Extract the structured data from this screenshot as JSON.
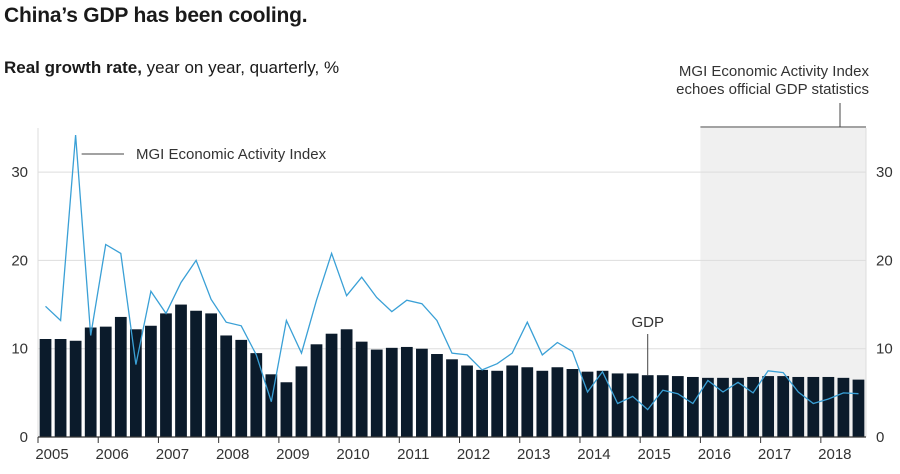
{
  "header": {
    "title": "China’s GDP has been cooling.",
    "subtitle_bold": "Real growth rate,",
    "subtitle_rest": " year on year, quarterly, %"
  },
  "annotations": {
    "shaded_note_line1": "MGI Economic Activity Index",
    "shaded_note_line2": "echoes official GDP statistics",
    "index_label": "MGI Economic Activity Index",
    "gdp_label": "GDP"
  },
  "colors": {
    "bar": "#0b1b2b",
    "line": "#3aa0d6",
    "shade": "#f0f0f0",
    "grid": "#dddddd",
    "axis": "#333333",
    "text": "#333333"
  },
  "chart_data": {
    "type": "bar",
    "title": "China’s GDP has been cooling.",
    "ylabel": "Real growth rate, year on year, quarterly, %",
    "ylim": [
      0,
      35
    ],
    "y_ticks": [
      0,
      10,
      20,
      30
    ],
    "x_tick_labels": [
      "2005",
      "2006",
      "2007",
      "2008",
      "2009",
      "2010",
      "2011",
      "2012",
      "2013",
      "2014",
      "2015",
      "2016",
      "2017",
      "2018"
    ],
    "shaded_from_year": "2016",
    "grid": true,
    "x": [
      "2005 Q1",
      "2005 Q2",
      "2005 Q3",
      "2005 Q4",
      "2006 Q1",
      "2006 Q2",
      "2006 Q3",
      "2006 Q4",
      "2007 Q1",
      "2007 Q2",
      "2007 Q3",
      "2007 Q4",
      "2008 Q1",
      "2008 Q2",
      "2008 Q3",
      "2008 Q4",
      "2009 Q1",
      "2009 Q2",
      "2009 Q3",
      "2009 Q4",
      "2010 Q1",
      "2010 Q2",
      "2010 Q3",
      "2010 Q4",
      "2011 Q1",
      "2011 Q2",
      "2011 Q3",
      "2011 Q4",
      "2012 Q1",
      "2012 Q2",
      "2012 Q3",
      "2012 Q4",
      "2013 Q1",
      "2013 Q2",
      "2013 Q3",
      "2013 Q4",
      "2014 Q1",
      "2014 Q2",
      "2014 Q3",
      "2014 Q4",
      "2015 Q1",
      "2015 Q2",
      "2015 Q3",
      "2015 Q4",
      "2016 Q1",
      "2016 Q2",
      "2016 Q3",
      "2016 Q4",
      "2017 Q1",
      "2017 Q2",
      "2017 Q3",
      "2017 Q4",
      "2018 Q1",
      "2018 Q2",
      "2018 Q3"
    ],
    "series": [
      {
        "name": "GDP",
        "kind": "bar",
        "values": [
          11.1,
          11.1,
          10.9,
          12.4,
          12.5,
          13.6,
          12.2,
          12.6,
          14.0,
          15.0,
          14.3,
          14.0,
          11.5,
          11.0,
          9.5,
          7.1,
          6.2,
          8.0,
          10.5,
          11.7,
          12.2,
          10.8,
          9.9,
          10.1,
          10.2,
          10.0,
          9.4,
          8.8,
          8.1,
          7.6,
          7.5,
          8.1,
          7.9,
          7.5,
          7.9,
          7.7,
          7.4,
          7.5,
          7.2,
          7.2,
          7.0,
          7.0,
          6.9,
          6.8,
          6.7,
          6.7,
          6.7,
          6.8,
          6.9,
          6.9,
          6.8,
          6.8,
          6.8,
          6.7,
          6.5
        ],
        "color": "#0b1b2b"
      },
      {
        "name": "MGI Economic Activity Index",
        "kind": "line",
        "values": [
          14.8,
          13.2,
          34.2,
          11.5,
          21.8,
          20.8,
          8.2,
          16.5,
          14.0,
          17.5,
          20.0,
          15.6,
          13.0,
          12.6,
          9.3,
          4.0,
          13.2,
          9.5,
          15.5,
          20.8,
          16.0,
          18.1,
          15.8,
          14.2,
          15.5,
          15.1,
          13.2,
          9.5,
          9.3,
          7.6,
          8.3,
          9.5,
          13.0,
          9.3,
          10.7,
          9.7,
          5.1,
          7.4,
          3.8,
          4.6,
          3.1,
          5.3,
          4.9,
          3.8,
          6.4,
          5.1,
          6.2,
          5.0,
          7.5,
          7.3,
          5.1,
          3.8,
          4.3,
          5.0,
          4.9
        ],
        "color": "#3aa0d6"
      }
    ]
  }
}
